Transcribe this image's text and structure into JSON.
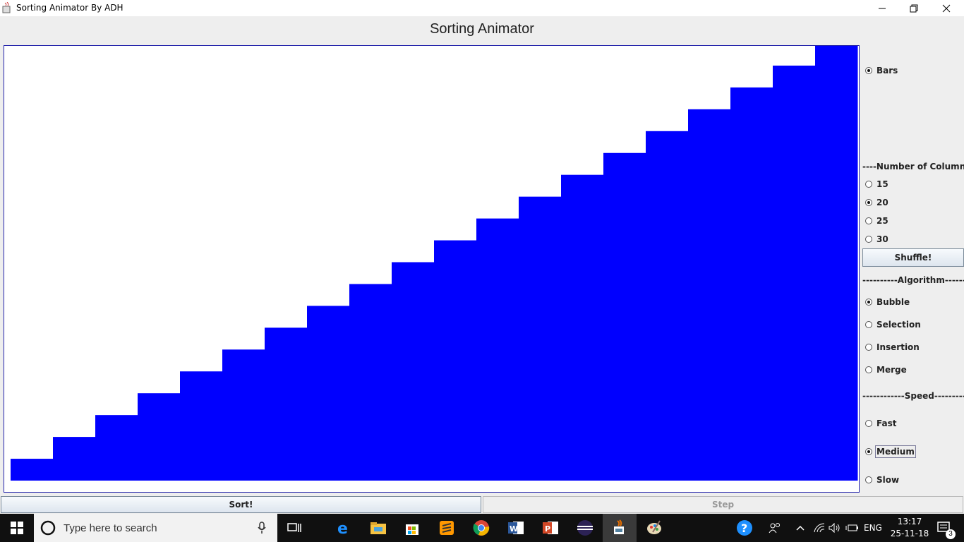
{
  "window": {
    "title": "Sorting Animator By ADH"
  },
  "heading": "Sorting Animator",
  "display": {
    "bars_label": "Bars"
  },
  "columns": {
    "header": "----Number of Columns----",
    "options": [
      "15",
      "20",
      "25",
      "30"
    ],
    "selected": "20",
    "shuffle_label": "Shuffle!"
  },
  "algorithm": {
    "header": "----------Algorithm----------",
    "options": [
      "Bubble",
      "Selection",
      "Insertion",
      "Merge"
    ],
    "selected": "Bubble"
  },
  "speed": {
    "header": "------------Speed------------",
    "options": [
      "Fast",
      "Medium",
      "Slow"
    ],
    "selected": "Medium"
  },
  "actions": {
    "sort_label": "Sort!",
    "step_label": "Step"
  },
  "bars": {
    "color": "#0000ff",
    "values": [
      1,
      2,
      3,
      4,
      5,
      6,
      7,
      8,
      9,
      10,
      11,
      12,
      13,
      14,
      15,
      16,
      17,
      18,
      19,
      20
    ]
  },
  "taskbar": {
    "search_placeholder": "Type here to search",
    "time": "13:17",
    "date": "25-11-18",
    "language": "ENG",
    "notification_count": "3"
  }
}
